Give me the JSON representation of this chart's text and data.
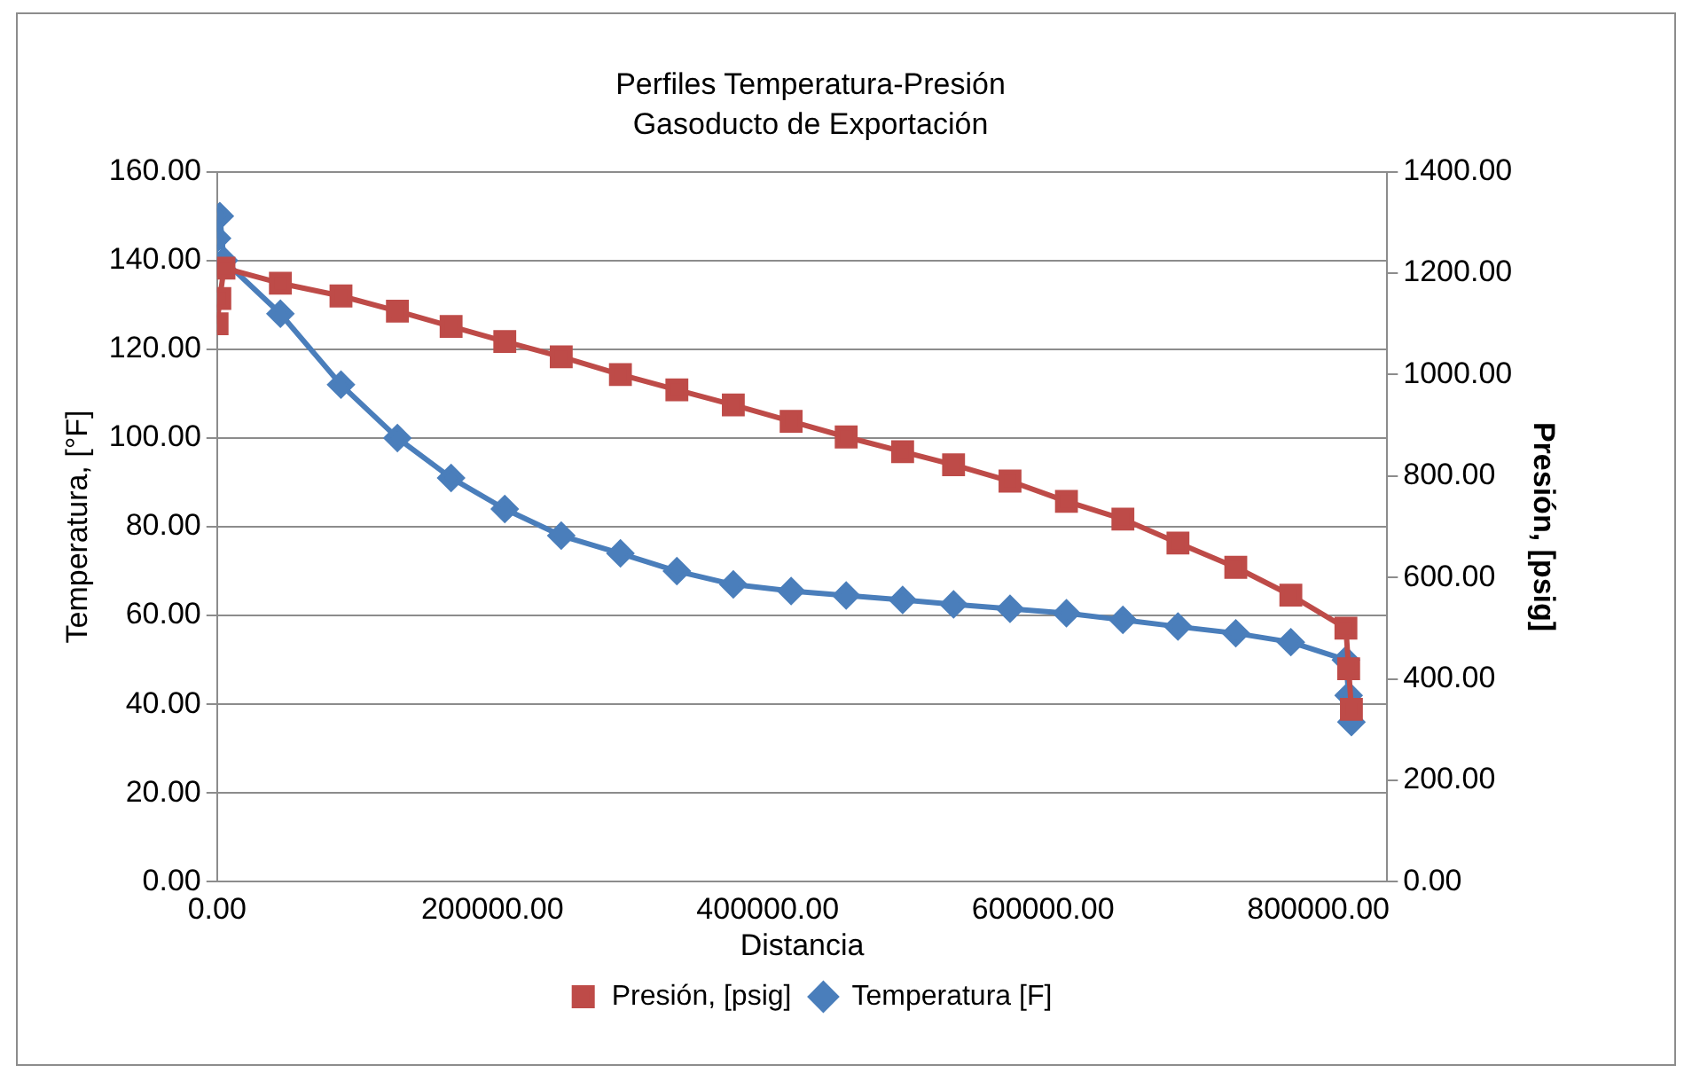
{
  "chart_data": {
    "type": "line",
    "title": "Perfiles Temperatura-Presión",
    "subtitle": "Gasoducto de Exportación",
    "xlabel": "Distancia",
    "ylabel": "Temperatura, [°F]",
    "y2label": "Presión, [psig]",
    "x": [
      0,
      2000,
      5000,
      46000,
      90000,
      131000,
      170000,
      209000,
      250000,
      293000,
      334000,
      375000,
      417000,
      457000,
      498000,
      535000,
      576000,
      617000,
      658000,
      698000,
      740000,
      780000,
      820000,
      822000,
      824000
    ],
    "series": [
      {
        "name": "Temperatura [F]",
        "color": "#4a7ebb",
        "marker": "diamond",
        "values": [
          145,
          150,
          140,
          128,
          112,
          100,
          91,
          84,
          78,
          74,
          70,
          67,
          65.5,
          64.5,
          63.5,
          62.5,
          61.5,
          60.5,
          59,
          57.5,
          56,
          54,
          50,
          42,
          36
        ]
      },
      {
        "name": "Presión, [psig]",
        "color": "#be4b48",
        "marker": "square",
        "axis": "y2",
        "values": [
          1100,
          1150,
          1210,
          1180,
          1155,
          1125,
          1095,
          1065,
          1035,
          1000,
          970,
          940,
          908,
          877,
          848,
          822,
          790,
          750,
          715,
          668,
          620,
          565,
          500,
          420,
          340
        ]
      }
    ],
    "xlim": [
      0,
      850000
    ],
    "xticks": [
      {
        "value": 0,
        "label": "0.00"
      },
      {
        "value": 200000,
        "label": "200000.00"
      },
      {
        "value": 400000,
        "label": "400000.00"
      },
      {
        "value": 600000,
        "label": "600000.00"
      },
      {
        "value": 800000,
        "label": "800000.00"
      }
    ],
    "ylim": [
      0,
      160
    ],
    "yticks": [
      {
        "value": 0,
        "label": "0.00"
      },
      {
        "value": 20,
        "label": "20.00"
      },
      {
        "value": 40,
        "label": "40.00"
      },
      {
        "value": 60,
        "label": "60.00"
      },
      {
        "value": 80,
        "label": "80.00"
      },
      {
        "value": 100,
        "label": "100.00"
      },
      {
        "value": 120,
        "label": "120.00"
      },
      {
        "value": 140,
        "label": "140.00"
      },
      {
        "value": 160,
        "label": "160.00"
      }
    ],
    "y2lim": [
      0,
      1400
    ],
    "y2ticks": [
      {
        "value": 0,
        "label": "0.00"
      },
      {
        "value": 200,
        "label": "200.00"
      },
      {
        "value": 400,
        "label": "400.00"
      },
      {
        "value": 600,
        "label": "600.00"
      },
      {
        "value": 800,
        "label": "800.00"
      },
      {
        "value": 1000,
        "label": "1000.00"
      },
      {
        "value": 1200,
        "label": "1200.00"
      },
      {
        "value": 1400,
        "label": "1400.00"
      }
    ],
    "grid": "y",
    "legend": "bottom",
    "line_style": "solid"
  }
}
